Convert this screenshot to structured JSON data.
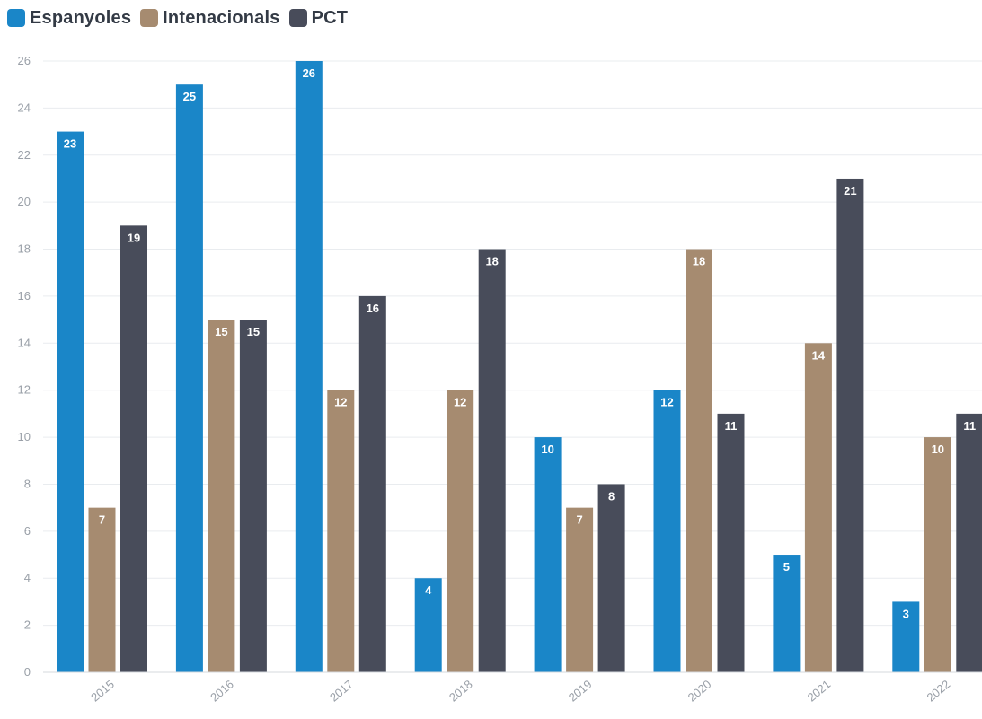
{
  "chart_data": {
    "type": "bar",
    "categories": [
      "2015",
      "2016",
      "2017",
      "2018",
      "2019",
      "2020",
      "2021",
      "2022"
    ],
    "series": [
      {
        "name": "Espanyoles",
        "color": "#1a86c8",
        "values": [
          23,
          25,
          26,
          4,
          10,
          12,
          5,
          3
        ]
      },
      {
        "name": "Intenacionals",
        "color": "#a68b70",
        "values": [
          7,
          15,
          12,
          12,
          7,
          18,
          14,
          10
        ]
      },
      {
        "name": "PCT",
        "color": "#484c5a",
        "values": [
          19,
          15,
          16,
          18,
          8,
          11,
          21,
          11
        ]
      }
    ],
    "ylim": [
      0,
      26
    ],
    "yticks": [
      "0",
      "2",
      "4",
      "6",
      "8",
      "10",
      "12",
      "14",
      "16",
      "18",
      "20",
      "22",
      "24",
      "26"
    ],
    "grid": true,
    "legend_position": "top-left",
    "data_labels": true
  }
}
